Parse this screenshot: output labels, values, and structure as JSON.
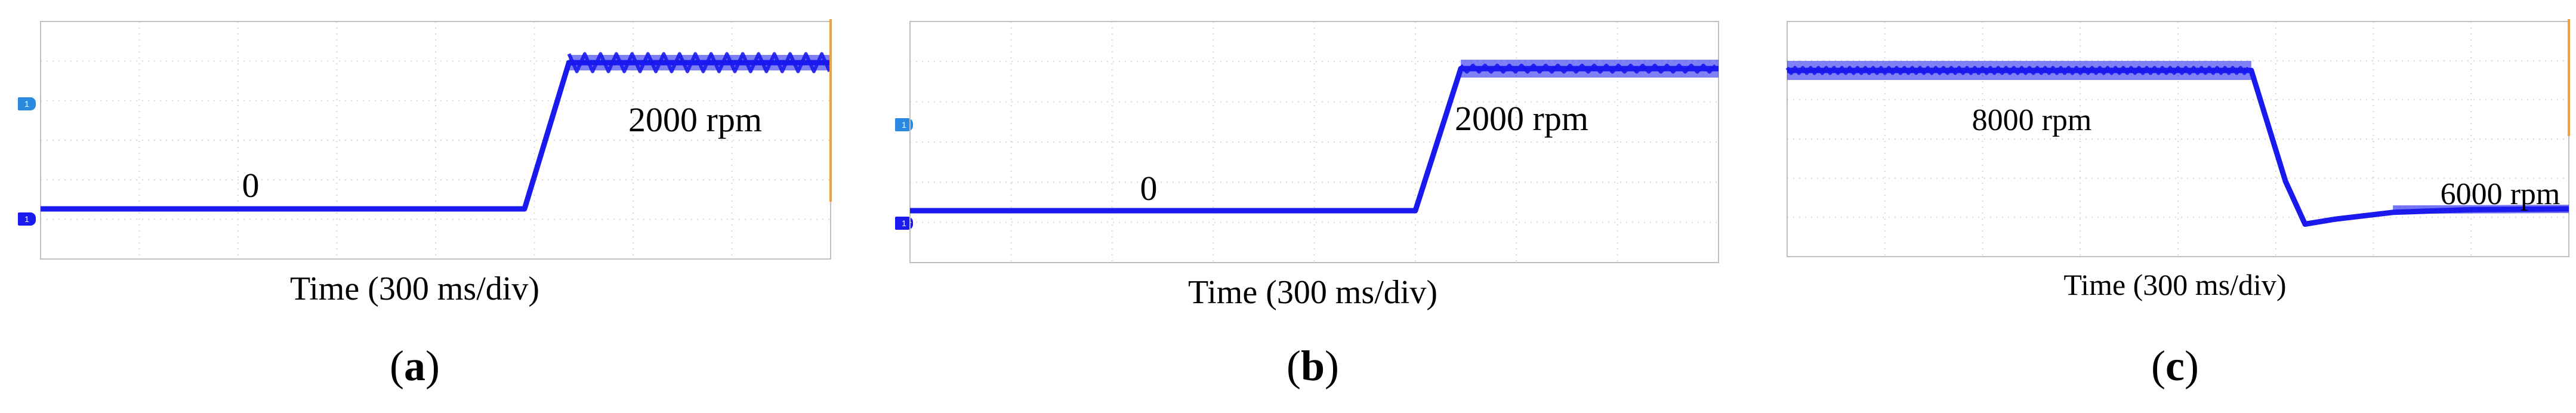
{
  "chart_data": [
    {
      "type": "line",
      "panel_label": "a",
      "xlabel": "Time (300 ms/div)",
      "annotations": [
        "0",
        "2000 rpm"
      ],
      "ch1_marker": "1",
      "ch2_marker": "1",
      "x_divisions": 8,
      "y_divisions": 6,
      "series": [
        {
          "x": [
            0,
            4.9,
            5.35,
            8.0
          ],
          "y": [
            0,
            0,
            2000,
            2000
          ],
          "ripple_after_x": 5.35,
          "ripple_amplitude": 120,
          "ripple_period": 0.16
        }
      ],
      "cursor_line": true
    },
    {
      "type": "line",
      "panel_label": "b",
      "xlabel": "Time (300 ms/div)",
      "annotations": [
        "0",
        "2000 rpm"
      ],
      "ch1_marker": "1",
      "ch2_marker": "1",
      "x_divisions": 8,
      "y_divisions": 6,
      "series": [
        {
          "x": [
            0,
            5.0,
            5.45,
            8.0
          ],
          "y": [
            0,
            0,
            2000,
            2000
          ],
          "ripple_after_x": 5.45,
          "ripple_amplitude": 45,
          "ripple_period": 0.12
        }
      ],
      "cursor_line": false
    },
    {
      "type": "line",
      "panel_label": "c",
      "xlabel": "Time (300 ms/div)",
      "annotations": [
        "8000 rpm",
        "6000 rpm"
      ],
      "x_divisions": 8,
      "y_divisions": 6,
      "series": [
        {
          "x": [
            0,
            4.75,
            5.1,
            5.3,
            5.6,
            6.2,
            7.0,
            8.0
          ],
          "y": [
            8000,
            8000,
            6400,
            5780,
            5850,
            5950,
            5990,
            6000
          ],
          "ripple_after_x": 0,
          "ripple_amplitude": 40,
          "ripple_period": 0.08
        }
      ],
      "cursor_line": true
    }
  ]
}
